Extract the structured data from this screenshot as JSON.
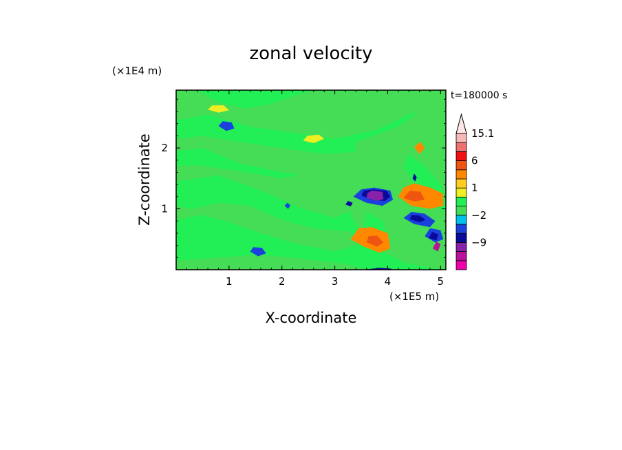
{
  "chart_data": {
    "type": "heatmap",
    "title": "zonal velocity",
    "xlabel": "X-coordinate",
    "ylabel": "Z-coordinate",
    "x_unit": "(×1E5 m)",
    "y_unit": "(×1E4 m)",
    "time_label": "t=180000 s",
    "xlim": [
      0,
      5.1
    ],
    "ylim": [
      0,
      2.95
    ],
    "x_ticks": [
      1,
      2,
      3,
      4,
      5
    ],
    "y_ticks": [
      1,
      2
    ],
    "grid": false,
    "colorbar": {
      "placement": "right",
      "levels": [
        -15,
        -12,
        -9,
        -6,
        -3,
        -2,
        -1,
        0,
        1,
        2,
        3,
        6,
        9,
        12,
        15.1
      ],
      "labeled_levels": [
        15.1,
        6,
        1,
        -2,
        -9
      ],
      "colors": [
        "#ee00aa",
        "#bb1199",
        "#8822aa",
        "#0a0a9a",
        "#1a40dd",
        "#00c0ee",
        "#44dd55",
        "#22ee55",
        "#eeee22",
        "#ffcc22",
        "#ff8800",
        "#ee5511",
        "#ee1111",
        "#f07070",
        "#f8b8b8"
      ],
      "extend": "max"
    },
    "background_value": 0.5,
    "regions": [
      {
        "v": -0.5,
        "pts": [
          [
            0,
            2.45
          ],
          [
            0.6,
            2.55
          ],
          [
            1.4,
            2.35
          ],
          [
            2.2,
            2.25
          ],
          [
            3.0,
            2.15
          ],
          [
            3.8,
            2.3
          ],
          [
            4.4,
            2.55
          ],
          [
            5.1,
            2.7
          ],
          [
            5.1,
            2.95
          ],
          [
            0,
            2.95
          ]
        ]
      },
      {
        "v": 0.5,
        "pts": [
          [
            0.4,
            2.95
          ],
          [
            0.8,
            2.75
          ],
          [
            1.3,
            2.65
          ],
          [
            1.8,
            2.72
          ],
          [
            2.2,
            2.85
          ],
          [
            2.6,
            2.95
          ]
        ]
      },
      {
        "v": -0.5,
        "pts": [
          [
            0,
            1.95
          ],
          [
            0.5,
            2.0
          ],
          [
            1.2,
            1.75
          ],
          [
            2.0,
            1.6
          ],
          [
            2.8,
            1.5
          ],
          [
            3.6,
            1.55
          ],
          [
            4.2,
            1.85
          ],
          [
            4.5,
            2.05
          ],
          [
            4.8,
            2.0
          ],
          [
            5.1,
            1.95
          ],
          [
            5.1,
            2.25
          ],
          [
            4.4,
            2.15
          ],
          [
            3.6,
            1.95
          ],
          [
            2.8,
            1.9
          ],
          [
            2.0,
            2.0
          ],
          [
            1.2,
            2.1
          ],
          [
            0.5,
            2.2
          ],
          [
            0,
            2.15
          ]
        ]
      },
      {
        "v": -0.5,
        "pts": [
          [
            0,
            1.45
          ],
          [
            0.8,
            1.55
          ],
          [
            1.6,
            1.3
          ],
          [
            2.4,
            1.0
          ],
          [
            3.0,
            0.85
          ],
          [
            3.5,
            1.05
          ],
          [
            3.9,
            1.45
          ],
          [
            4.3,
            1.55
          ],
          [
            4.8,
            1.4
          ],
          [
            5.1,
            1.45
          ],
          [
            5.1,
            1.7
          ],
          [
            4.4,
            1.7
          ],
          [
            3.6,
            1.7
          ],
          [
            2.8,
            1.65
          ],
          [
            2.0,
            1.5
          ],
          [
            1.2,
            1.62
          ],
          [
            0.4,
            1.72
          ],
          [
            0,
            1.7
          ]
        ]
      },
      {
        "v": -0.5,
        "pts": [
          [
            0,
            0.82
          ],
          [
            0.5,
            0.9
          ],
          [
            1.0,
            0.78
          ],
          [
            1.6,
            0.6
          ],
          [
            2.3,
            0.42
          ],
          [
            3.0,
            0.3
          ],
          [
            3.4,
            0.4
          ],
          [
            3.3,
            0.62
          ],
          [
            2.6,
            0.68
          ],
          [
            2.0,
            0.82
          ],
          [
            1.4,
            1.05
          ],
          [
            0.8,
            1.1
          ],
          [
            0.3,
            1.0
          ],
          [
            0,
            1.05
          ]
        ]
      },
      {
        "v": -0.5,
        "pts": [
          [
            0,
            0.15
          ],
          [
            0.8,
            0.2
          ],
          [
            1.6,
            0.25
          ],
          [
            2.4,
            0.18
          ],
          [
            3.2,
            0.1
          ],
          [
            3.6,
            0.0
          ],
          [
            0,
            0.0
          ]
        ]
      },
      {
        "v": -2.5,
        "pts": [
          [
            0.8,
            2.36
          ],
          [
            0.95,
            2.28
          ],
          [
            1.1,
            2.32
          ],
          [
            1.05,
            2.42
          ],
          [
            0.88,
            2.44
          ]
        ]
      },
      {
        "v": -2.5,
        "pts": [
          [
            1.4,
            0.3
          ],
          [
            1.55,
            0.22
          ],
          [
            1.7,
            0.27
          ],
          [
            1.62,
            0.36
          ],
          [
            1.46,
            0.37
          ]
        ]
      },
      {
        "v": 1.5,
        "pts": [
          [
            0.6,
            2.63
          ],
          [
            0.8,
            2.58
          ],
          [
            1.0,
            2.62
          ],
          [
            0.9,
            2.7
          ],
          [
            0.68,
            2.7
          ]
        ]
      },
      {
        "v": 1.5,
        "pts": [
          [
            2.4,
            2.12
          ],
          [
            2.6,
            2.08
          ],
          [
            2.8,
            2.15
          ],
          [
            2.7,
            2.22
          ],
          [
            2.48,
            2.2
          ]
        ]
      },
      {
        "v": -0.5,
        "pts": [
          [
            3.4,
            2.1
          ],
          [
            4.2,
            2.35
          ],
          [
            4.6,
            2.6
          ],
          [
            5.1,
            2.95
          ],
          [
            5.1,
            0.0
          ],
          [
            4.7,
            0.05
          ],
          [
            4.3,
            0.12
          ],
          [
            3.9,
            0.3
          ],
          [
            3.5,
            0.6
          ],
          [
            3.3,
            0.9
          ]
        ]
      },
      {
        "v": 0.5,
        "pts": [
          [
            4.4,
            1.9
          ],
          [
            4.7,
            1.7
          ],
          [
            5.0,
            1.4
          ],
          [
            5.1,
            1.2
          ],
          [
            5.1,
            0.95
          ],
          [
            4.8,
            1.1
          ],
          [
            4.5,
            1.4
          ],
          [
            4.3,
            1.7
          ]
        ]
      },
      {
        "v": 0.5,
        "pts": [
          [
            3.6,
            0.95
          ],
          [
            3.9,
            0.8
          ],
          [
            4.0,
            0.55
          ],
          [
            3.8,
            0.5
          ],
          [
            3.55,
            0.7
          ]
        ]
      },
      {
        "v": 4.5,
        "pts": [
          [
            4.2,
            1.2
          ],
          [
            4.45,
            1.05
          ],
          [
            4.8,
            1.0
          ],
          [
            5.05,
            1.05
          ],
          [
            5.05,
            1.25
          ],
          [
            4.8,
            1.35
          ],
          [
            4.5,
            1.42
          ],
          [
            4.3,
            1.35
          ]
        ]
      },
      {
        "v": 7.5,
        "pts": [
          [
            4.3,
            1.18
          ],
          [
            4.5,
            1.12
          ],
          [
            4.7,
            1.15
          ],
          [
            4.62,
            1.28
          ],
          [
            4.42,
            1.3
          ]
        ]
      },
      {
        "v": 4.5,
        "pts": [
          [
            3.3,
            0.5
          ],
          [
            3.55,
            0.38
          ],
          [
            3.85,
            0.28
          ],
          [
            4.05,
            0.35
          ],
          [
            4.0,
            0.6
          ],
          [
            3.7,
            0.7
          ],
          [
            3.45,
            0.68
          ]
        ]
      },
      {
        "v": 7.5,
        "pts": [
          [
            3.6,
            0.45
          ],
          [
            3.8,
            0.38
          ],
          [
            3.92,
            0.45
          ],
          [
            3.8,
            0.56
          ],
          [
            3.64,
            0.55
          ]
        ]
      },
      {
        "v": 4.5,
        "pts": [
          [
            4.5,
            2.02
          ],
          [
            4.6,
            1.9
          ],
          [
            4.7,
            2.0
          ],
          [
            4.62,
            2.1
          ]
        ]
      },
      {
        "v": -2.5,
        "pts": [
          [
            3.35,
            1.2
          ],
          [
            3.6,
            1.1
          ],
          [
            3.9,
            1.05
          ],
          [
            4.1,
            1.15
          ],
          [
            4.05,
            1.3
          ],
          [
            3.75,
            1.35
          ],
          [
            3.5,
            1.32
          ]
        ]
      },
      {
        "v": -4.5,
        "pts": [
          [
            3.5,
            1.22
          ],
          [
            3.7,
            1.15
          ],
          [
            3.95,
            1.13
          ],
          [
            4.05,
            1.2
          ],
          [
            3.98,
            1.3
          ],
          [
            3.72,
            1.32
          ],
          [
            3.55,
            1.3
          ]
        ]
      },
      {
        "v": -7.5,
        "pts": [
          [
            3.6,
            1.18
          ],
          [
            3.8,
            1.13
          ],
          [
            3.92,
            1.16
          ],
          [
            3.9,
            1.28
          ],
          [
            3.7,
            1.3
          ],
          [
            3.62,
            1.26
          ]
        ]
      },
      {
        "v": -2.5,
        "pts": [
          [
            4.3,
            0.85
          ],
          [
            4.5,
            0.75
          ],
          [
            4.8,
            0.7
          ],
          [
            4.9,
            0.8
          ],
          [
            4.7,
            0.92
          ],
          [
            4.45,
            0.95
          ]
        ]
      },
      {
        "v": -4.5,
        "pts": [
          [
            4.42,
            0.83
          ],
          [
            4.6,
            0.78
          ],
          [
            4.72,
            0.82
          ],
          [
            4.6,
            0.89
          ],
          [
            4.45,
            0.9
          ]
        ]
      },
      {
        "v": -2.5,
        "pts": [
          [
            4.7,
            0.55
          ],
          [
            4.9,
            0.45
          ],
          [
            5.05,
            0.5
          ],
          [
            5.0,
            0.65
          ],
          [
            4.8,
            0.68
          ]
        ]
      },
      {
        "v": -4.5,
        "pts": [
          [
            4.78,
            0.52
          ],
          [
            4.92,
            0.48
          ],
          [
            4.96,
            0.58
          ],
          [
            4.84,
            0.62
          ]
        ]
      },
      {
        "v": -10.5,
        "pts": [
          [
            4.85,
            0.35
          ],
          [
            4.95,
            0.3
          ],
          [
            5.0,
            0.42
          ],
          [
            4.92,
            0.46
          ]
        ]
      },
      {
        "v": -4.5,
        "pts": [
          [
            3.55,
            0.0
          ],
          [
            3.85,
            0.03
          ],
          [
            4.05,
            0.02
          ],
          [
            4.1,
            0.0
          ]
        ]
      },
      {
        "v": -4.5,
        "pts": [
          [
            4.47,
            1.5
          ],
          [
            4.52,
            1.45
          ],
          [
            4.55,
            1.52
          ],
          [
            4.5,
            1.58
          ]
        ]
      },
      {
        "v": -2.5,
        "pts": [
          [
            2.05,
            1.05
          ],
          [
            2.12,
            1.0
          ],
          [
            2.16,
            1.06
          ],
          [
            2.1,
            1.1
          ]
        ]
      },
      {
        "v": -4.5,
        "pts": [
          [
            3.2,
            1.07
          ],
          [
            3.3,
            1.04
          ],
          [
            3.34,
            1.1
          ],
          [
            3.25,
            1.13
          ]
        ]
      }
    ]
  }
}
